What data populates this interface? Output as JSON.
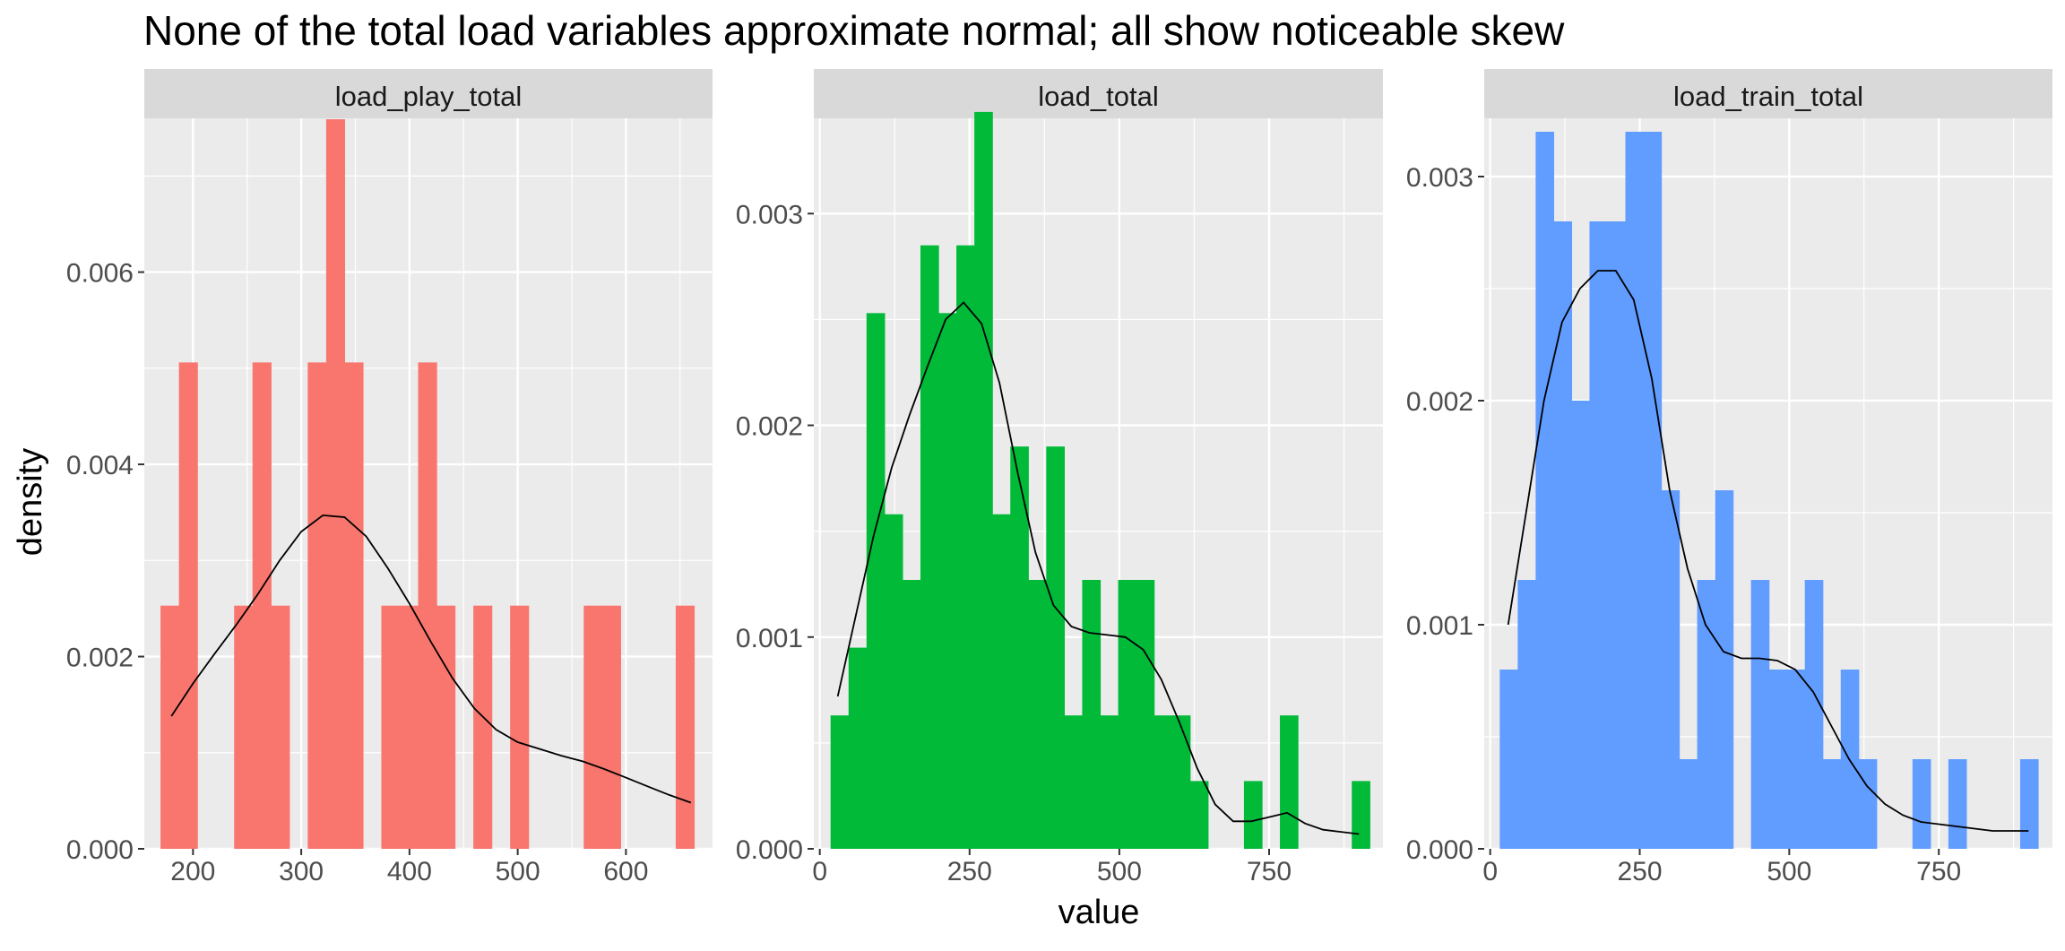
{
  "colors": {
    "panel_bg": "#EBEBEB",
    "strip_bg": "#D9D9D9",
    "grid": "#FFFFFF",
    "tick_text": "#4D4D4D",
    "density_line": "#000000"
  },
  "chart_data": {
    "type": "bar",
    "title": "None of the total load variables approximate normal; all show noticeable skew",
    "xlabel": "value",
    "ylabel": "density",
    "grid": true,
    "overlay": "density curve",
    "facets": [
      {
        "name": "load_play_total",
        "color": "#F8766D",
        "xlim": [
          155,
          680
        ],
        "ylim": [
          0,
          0.0076
        ],
        "x_ticks": [
          200,
          300,
          400,
          500,
          600
        ],
        "x_tick_labels": [
          "200",
          "300",
          "400",
          "500",
          "600"
        ],
        "y_ticks": [
          0,
          0.002,
          0.004,
          0.006
        ],
        "y_tick_labels": [
          "0.000",
          "0.002",
          "0.004",
          "0.006"
        ],
        "bins": [
          {
            "x0": 170,
            "x1": 187,
            "density": 0.00253
          },
          {
            "x0": 187,
            "x1": 204,
            "density": 0.00506
          },
          {
            "x0": 238,
            "x1": 255,
            "density": 0.00253
          },
          {
            "x0": 255,
            "x1": 272,
            "density": 0.00506
          },
          {
            "x0": 272,
            "x1": 289,
            "density": 0.00253
          },
          {
            "x0": 306,
            "x1": 323,
            "density": 0.00506
          },
          {
            "x0": 323,
            "x1": 340,
            "density": 0.00759
          },
          {
            "x0": 340,
            "x1": 357,
            "density": 0.00506
          },
          {
            "x0": 374,
            "x1": 391,
            "density": 0.00253
          },
          {
            "x0": 391,
            "x1": 408,
            "density": 0.00253
          },
          {
            "x0": 408,
            "x1": 425,
            "density": 0.00506
          },
          {
            "x0": 425,
            "x1": 442,
            "density": 0.00253
          },
          {
            "x0": 442,
            "x1": 459,
            "density": 0
          },
          {
            "x0": 459,
            "x1": 476,
            "density": 0.00253
          },
          {
            "x0": 476,
            "x1": 493,
            "density": 0
          },
          {
            "x0": 493,
            "x1": 510,
            "density": 0.00253
          },
          {
            "x0": 561,
            "x1": 578,
            "density": 0.00253
          },
          {
            "x0": 578,
            "x1": 595,
            "density": 0.00253
          },
          {
            "x0": 646,
            "x1": 663,
            "density": 0.00253
          }
        ],
        "density_curve": {
          "x": [
            180,
            200,
            220,
            240,
            260,
            280,
            300,
            320,
            340,
            360,
            380,
            400,
            420,
            440,
            460,
            480,
            500,
            520,
            540,
            560,
            580,
            600,
            620,
            640,
            660
          ],
          "y": [
            0.00138,
            0.00172,
            0.00203,
            0.00233,
            0.00265,
            0.003,
            0.0033,
            0.00347,
            0.00345,
            0.00325,
            0.00292,
            0.00255,
            0.00215,
            0.00177,
            0.00146,
            0.00124,
            0.00111,
            0.00104,
            0.00097,
            0.00091,
            0.00083,
            0.00074,
            0.00065,
            0.00056,
            0.00048
          ]
        }
      },
      {
        "name": "load_total",
        "color": "#00BA38",
        "xlim": [
          -10,
          940
        ],
        "ylim": [
          0,
          0.00345
        ],
        "x_ticks": [
          0,
          250,
          500,
          750
        ],
        "x_tick_labels": [
          "0",
          "250",
          "500",
          "750"
        ],
        "y_ticks": [
          0,
          0.001,
          0.002,
          0.003
        ],
        "y_tick_labels": [
          "0.000",
          "0.001",
          "0.002",
          "0.003"
        ],
        "bins": [
          {
            "x0": 18,
            "x1": 48,
            "density": 0.00063
          },
          {
            "x0": 48,
            "x1": 78,
            "density": 0.00095
          },
          {
            "x0": 78,
            "x1": 108,
            "density": 0.00253
          },
          {
            "x0": 108,
            "x1": 138,
            "density": 0.00158
          },
          {
            "x0": 138,
            "x1": 168,
            "density": 0.00127
          },
          {
            "x0": 168,
            "x1": 198,
            "density": 0.00285
          },
          {
            "x0": 198,
            "x1": 228,
            "density": 0.00253
          },
          {
            "x0": 228,
            "x1": 258,
            "density": 0.00285
          },
          {
            "x0": 258,
            "x1": 288,
            "density": 0.00348
          },
          {
            "x0": 288,
            "x1": 318,
            "density": 0.00158
          },
          {
            "x0": 318,
            "x1": 348,
            "density": 0.0019
          },
          {
            "x0": 348,
            "x1": 378,
            "density": 0.00127
          },
          {
            "x0": 378,
            "x1": 408,
            "density": 0.0019
          },
          {
            "x0": 408,
            "x1": 438,
            "density": 0.00063
          },
          {
            "x0": 438,
            "x1": 468,
            "density": 0.00127
          },
          {
            "x0": 468,
            "x1": 498,
            "density": 0.00063
          },
          {
            "x0": 498,
            "x1": 528,
            "density": 0.00127
          },
          {
            "x0": 528,
            "x1": 558,
            "density": 0.00127
          },
          {
            "x0": 558,
            "x1": 588,
            "density": 0.00063
          },
          {
            "x0": 588,
            "x1": 618,
            "density": 0.00063
          },
          {
            "x0": 618,
            "x1": 648,
            "density": 0.00032
          },
          {
            "x0": 708,
            "x1": 738,
            "density": 0.00032
          },
          {
            "x0": 768,
            "x1": 798,
            "density": 0.00063
          },
          {
            "x0": 888,
            "x1": 918,
            "density": 0.00032
          }
        ],
        "density_curve": {
          "x": [
            30,
            60,
            90,
            120,
            150,
            180,
            210,
            240,
            270,
            300,
            330,
            360,
            390,
            420,
            450,
            480,
            510,
            540,
            570,
            600,
            630,
            660,
            690,
            720,
            750,
            780,
            810,
            840,
            870,
            900
          ],
          "y": [
            0.00072,
            0.0011,
            0.00148,
            0.0018,
            0.00205,
            0.00228,
            0.0025,
            0.00258,
            0.00248,
            0.0022,
            0.00178,
            0.0014,
            0.00115,
            0.00105,
            0.00102,
            0.00101,
            0.001,
            0.00094,
            0.0008,
            0.0006,
            0.00038,
            0.00021,
            0.00013,
            0.00013,
            0.00015,
            0.00017,
            0.00012,
            9e-05,
            8e-05,
            7e-05
          ]
        }
      },
      {
        "name": "load_train_total",
        "color": "#619CFF",
        "xlim": [
          -10,
          940
        ],
        "ylim": [
          0,
          0.00326
        ],
        "x_ticks": [
          0,
          250,
          500,
          750
        ],
        "x_tick_labels": [
          "0",
          "250",
          "500",
          "750"
        ],
        "y_ticks": [
          0,
          0.001,
          0.002,
          0.003
        ],
        "y_tick_labels": [
          "0.000",
          "0.001",
          "0.002",
          "0.003"
        ],
        "bins": [
          {
            "x0": 16,
            "x1": 46,
            "density": 0.0008
          },
          {
            "x0": 46,
            "x1": 76,
            "density": 0.0012
          },
          {
            "x0": 76,
            "x1": 106,
            "density": 0.0032
          },
          {
            "x0": 106,
            "x1": 136,
            "density": 0.0028
          },
          {
            "x0": 136,
            "x1": 166,
            "density": 0.002
          },
          {
            "x0": 166,
            "x1": 196,
            "density": 0.0028
          },
          {
            "x0": 196,
            "x1": 226,
            "density": 0.0028
          },
          {
            "x0": 226,
            "x1": 256,
            "density": 0.0032
          },
          {
            "x0": 256,
            "x1": 286,
            "density": 0.0032
          },
          {
            "x0": 286,
            "x1": 316,
            "density": 0.0016
          },
          {
            "x0": 316,
            "x1": 346,
            "density": 0.0004
          },
          {
            "x0": 346,
            "x1": 376,
            "density": 0.0012
          },
          {
            "x0": 376,
            "x1": 406,
            "density": 0.0016
          },
          {
            "x0": 436,
            "x1": 466,
            "density": 0.0012
          },
          {
            "x0": 466,
            "x1": 496,
            "density": 0.0008
          },
          {
            "x0": 496,
            "x1": 526,
            "density": 0.0008
          },
          {
            "x0": 526,
            "x1": 556,
            "density": 0.0012
          },
          {
            "x0": 556,
            "x1": 586,
            "density": 0.0004
          },
          {
            "x0": 586,
            "x1": 616,
            "density": 0.0008
          },
          {
            "x0": 616,
            "x1": 646,
            "density": 0.0004
          },
          {
            "x0": 706,
            "x1": 736,
            "density": 0.0004
          },
          {
            "x0": 766,
            "x1": 796,
            "density": 0.0004
          },
          {
            "x0": 886,
            "x1": 916,
            "density": 0.0004
          }
        ],
        "density_curve": {
          "x": [
            30,
            60,
            90,
            120,
            150,
            180,
            210,
            240,
            270,
            300,
            330,
            360,
            390,
            420,
            450,
            480,
            510,
            540,
            570,
            600,
            630,
            660,
            690,
            720,
            750,
            780,
            810,
            840,
            870,
            900
          ],
          "y": [
            0.001,
            0.0015,
            0.002,
            0.00235,
            0.0025,
            0.00258,
            0.00258,
            0.00245,
            0.0021,
            0.0016,
            0.00125,
            0.001,
            0.00088,
            0.00085,
            0.00085,
            0.00084,
            0.0008,
            0.0007,
            0.00055,
            0.0004,
            0.00028,
            0.0002,
            0.00015,
            0.00012,
            0.00011,
            0.0001,
            9e-05,
            8e-05,
            8e-05,
            8e-05
          ]
        }
      }
    ]
  }
}
